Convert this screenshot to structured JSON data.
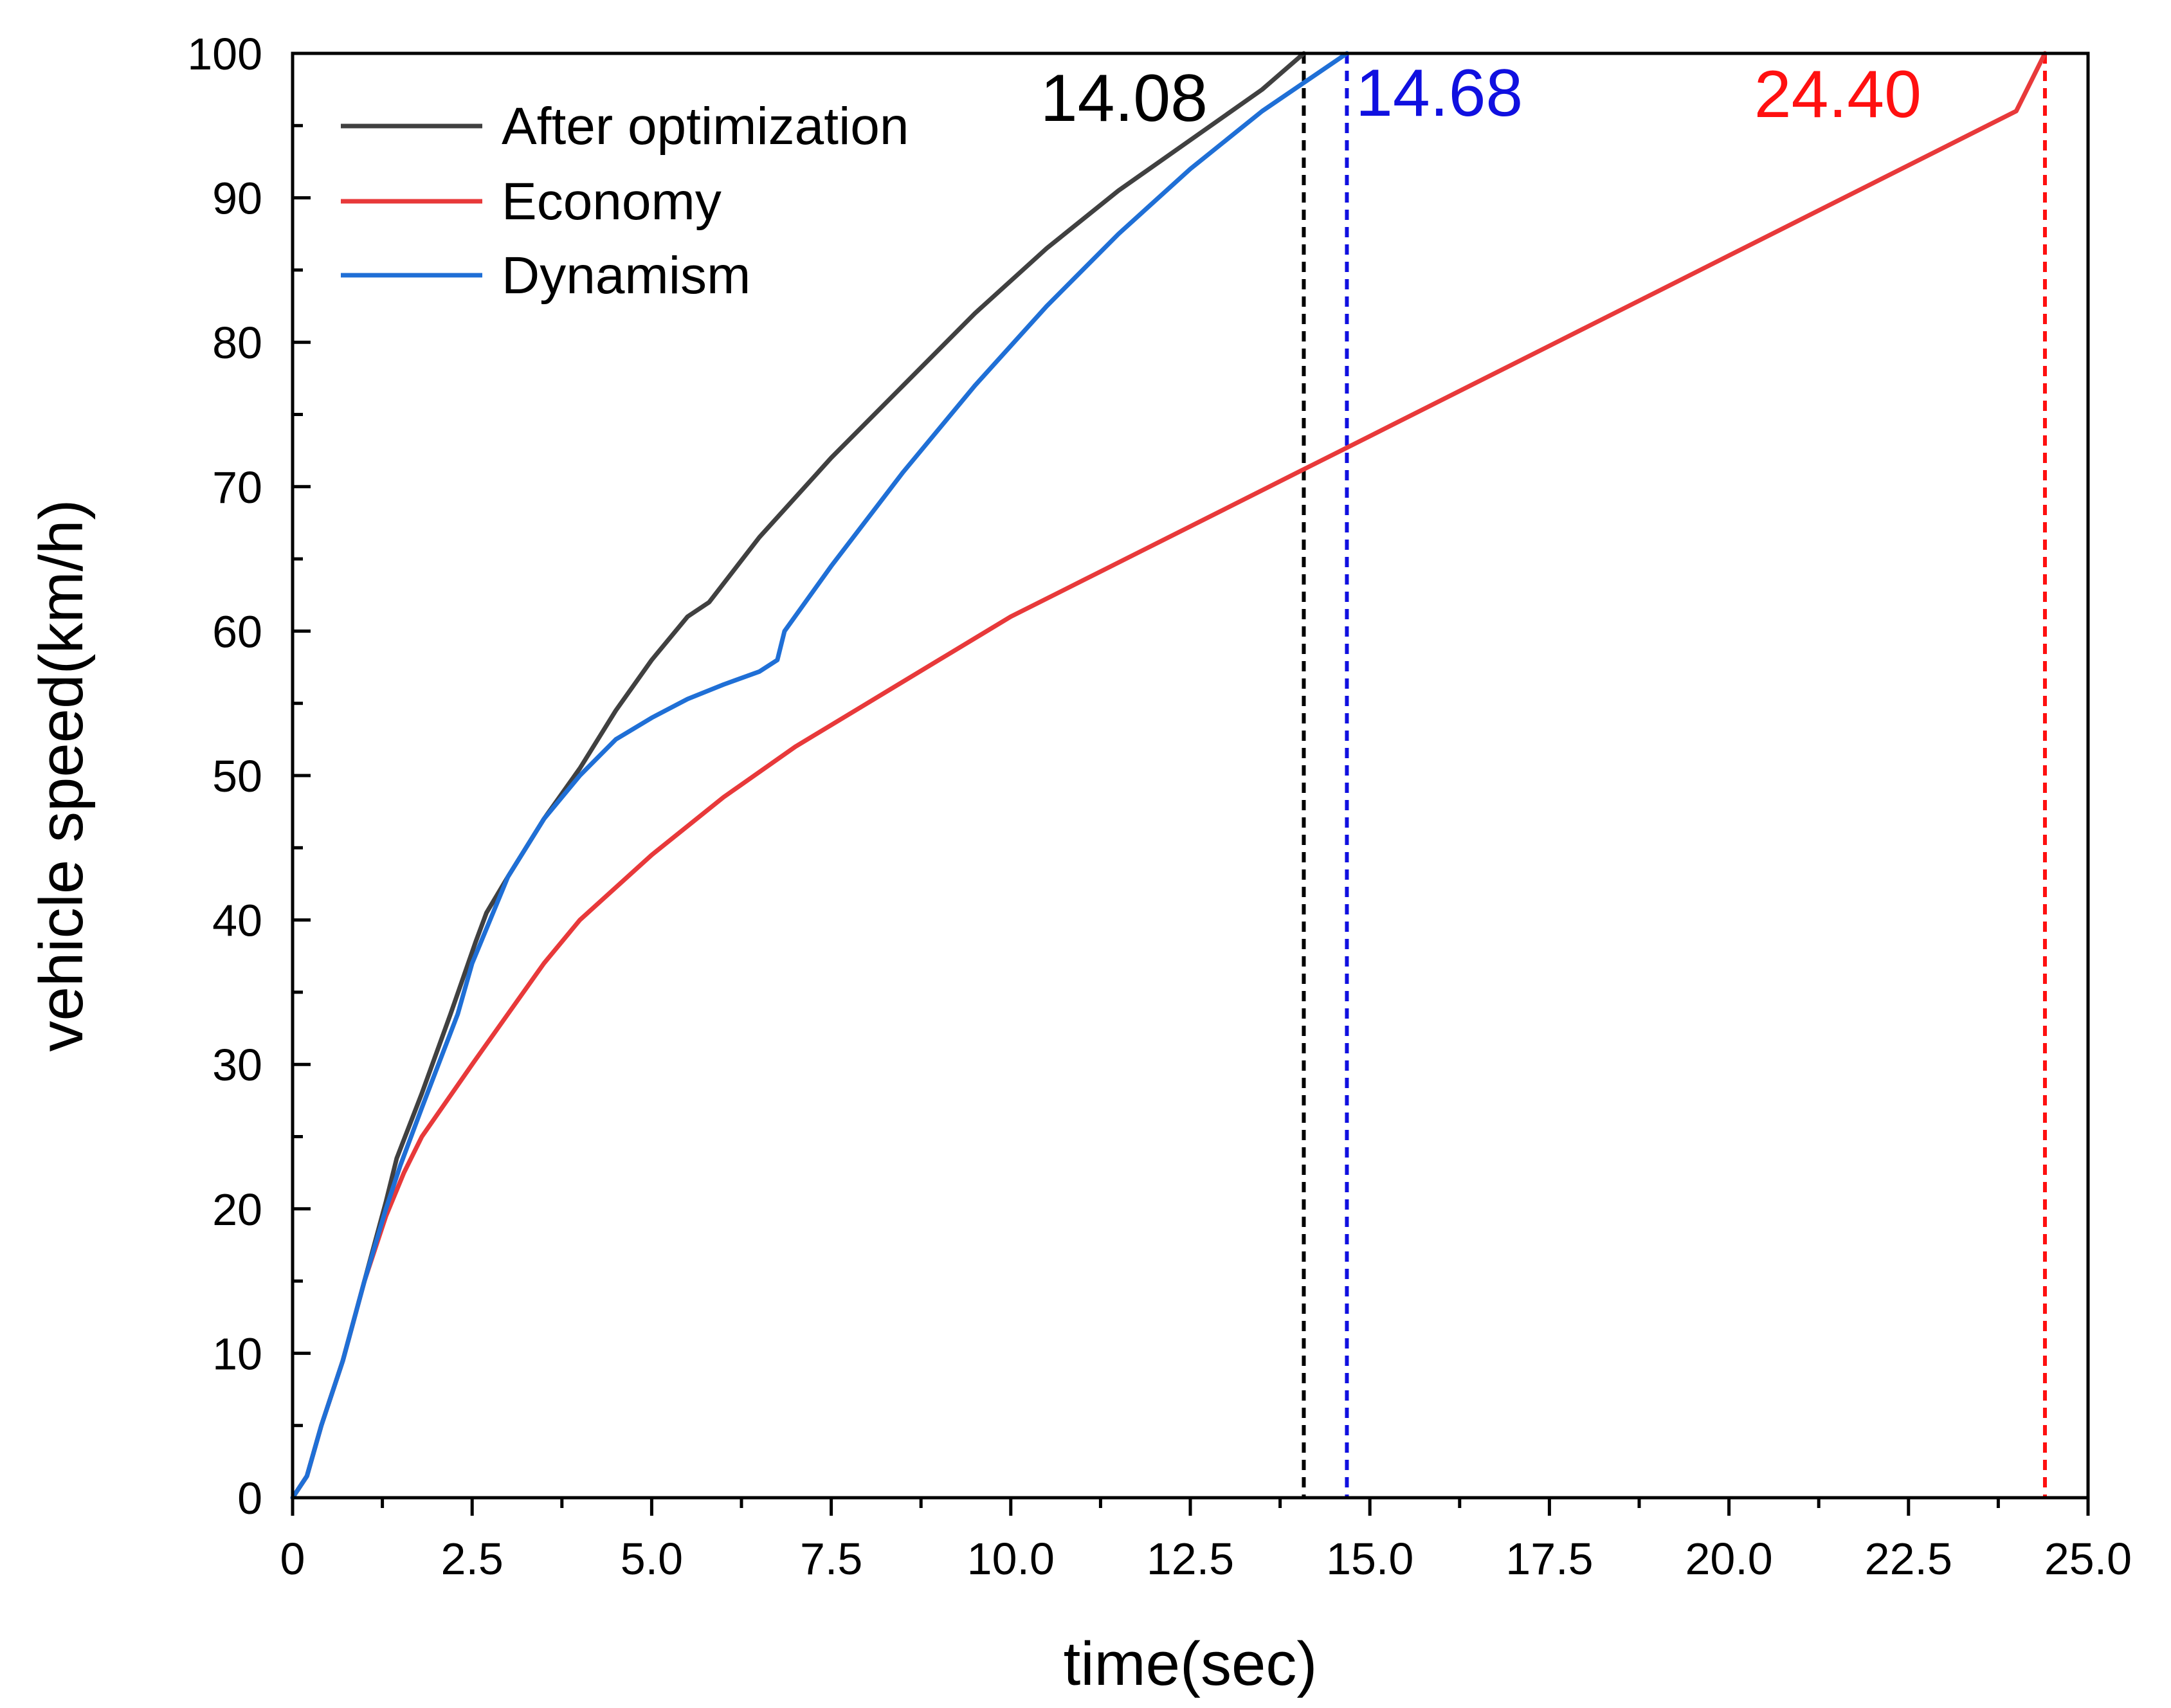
{
  "chart_data": {
    "type": "line",
    "title": "",
    "xlabel": "time(sec)",
    "ylabel": "vehicle speed(km/h)",
    "xlim": [
      0,
      25
    ],
    "ylim": [
      0,
      100
    ],
    "x_ticks": [
      "0",
      "2.5",
      "5.0",
      "7.5",
      "10.0",
      "12.5",
      "15.0",
      "17.5",
      "20.0",
      "22.5",
      "25.0"
    ],
    "y_ticks": [
      "0",
      "10",
      "20",
      "30",
      "40",
      "50",
      "60",
      "70",
      "80",
      "90",
      "100"
    ],
    "x_tick_values": [
      0,
      2.5,
      5,
      7.5,
      10,
      12.5,
      15,
      17.5,
      20,
      22.5,
      25
    ],
    "y_tick_values": [
      0,
      10,
      20,
      30,
      40,
      50,
      60,
      70,
      80,
      90,
      100
    ],
    "legend_position": "top-left",
    "grid": false,
    "series": [
      {
        "name": "After optimization",
        "color": "#404040",
        "points": [
          [
            0,
            0
          ],
          [
            0.2,
            1.5
          ],
          [
            0.4,
            5
          ],
          [
            0.7,
            9.5
          ],
          [
            1.0,
            15
          ],
          [
            1.3,
            20.5
          ],
          [
            1.45,
            23.5
          ],
          [
            1.8,
            28
          ],
          [
            2.2,
            33.5
          ],
          [
            2.55,
            38.5
          ],
          [
            2.7,
            40.5
          ],
          [
            3.0,
            43
          ],
          [
            3.5,
            47
          ],
          [
            4.0,
            50.5
          ],
          [
            4.5,
            54.5
          ],
          [
            5.0,
            58
          ],
          [
            5.5,
            61
          ],
          [
            5.8,
            62
          ],
          [
            6.5,
            66.5
          ],
          [
            7.5,
            72
          ],
          [
            8.5,
            77
          ],
          [
            9.5,
            82
          ],
          [
            10.5,
            86.5
          ],
          [
            11.5,
            90.5
          ],
          [
            12.5,
            94
          ],
          [
            13.5,
            97.5
          ],
          [
            14.08,
            100
          ]
        ]
      },
      {
        "name": "Economy",
        "color": "#e8393a",
        "points": [
          [
            0,
            0
          ],
          [
            0.2,
            1.5
          ],
          [
            0.4,
            5
          ],
          [
            0.7,
            9.5
          ],
          [
            1.0,
            15
          ],
          [
            1.3,
            19.5
          ],
          [
            1.55,
            22.5
          ],
          [
            1.8,
            25
          ],
          [
            2.5,
            30
          ],
          [
            3.0,
            33.5
          ],
          [
            3.5,
            37
          ],
          [
            4.0,
            40
          ],
          [
            5.0,
            44.5
          ],
          [
            6.0,
            48.5
          ],
          [
            7.0,
            52
          ],
          [
            8.0,
            55
          ],
          [
            9.0,
            58
          ],
          [
            10.0,
            61
          ],
          [
            11.0,
            63.5
          ],
          [
            12.0,
            66
          ],
          [
            13.0,
            68.5
          ],
          [
            14.0,
            71
          ],
          [
            15.0,
            73.5
          ],
          [
            16.0,
            76
          ],
          [
            17.0,
            78.5
          ],
          [
            18.0,
            81
          ],
          [
            19.0,
            83.5
          ],
          [
            20.0,
            86
          ],
          [
            21.0,
            88.5
          ],
          [
            22.0,
            91
          ],
          [
            23.0,
            93.5
          ],
          [
            24.0,
            96
          ],
          [
            24.4,
            100
          ]
        ]
      },
      {
        "name": "Dynamism",
        "color": "#1f6fd6",
        "points": [
          [
            0,
            0
          ],
          [
            0.2,
            1.5
          ],
          [
            0.4,
            5
          ],
          [
            0.7,
            9.5
          ],
          [
            1.0,
            15
          ],
          [
            1.3,
            20
          ],
          [
            1.5,
            23
          ],
          [
            1.8,
            27
          ],
          [
            2.3,
            33.5
          ],
          [
            2.5,
            37
          ],
          [
            3.0,
            43
          ],
          [
            3.5,
            47
          ],
          [
            4.0,
            50
          ],
          [
            4.5,
            52.5
          ],
          [
            5.0,
            54
          ],
          [
            5.5,
            55.3
          ],
          [
            6.0,
            56.3
          ],
          [
            6.5,
            57.2
          ],
          [
            6.75,
            58
          ],
          [
            6.85,
            60
          ],
          [
            7.5,
            64.5
          ],
          [
            8.5,
            71
          ],
          [
            9.5,
            77
          ],
          [
            10.5,
            82.5
          ],
          [
            10.9,
            84.5
          ],
          [
            11.0,
            85
          ],
          [
            11.5,
            87.5
          ],
          [
            12.5,
            92
          ],
          [
            13.5,
            96
          ],
          [
            14.68,
            100
          ]
        ]
      }
    ],
    "vertical_markers": [
      {
        "x": 14.08,
        "label": "14.08",
        "color": "#000000"
      },
      {
        "x": 14.68,
        "label": "14.68",
        "color": "#1010e0"
      },
      {
        "x": 24.4,
        "label": "24.40",
        "color": "#ff1010"
      }
    ]
  }
}
